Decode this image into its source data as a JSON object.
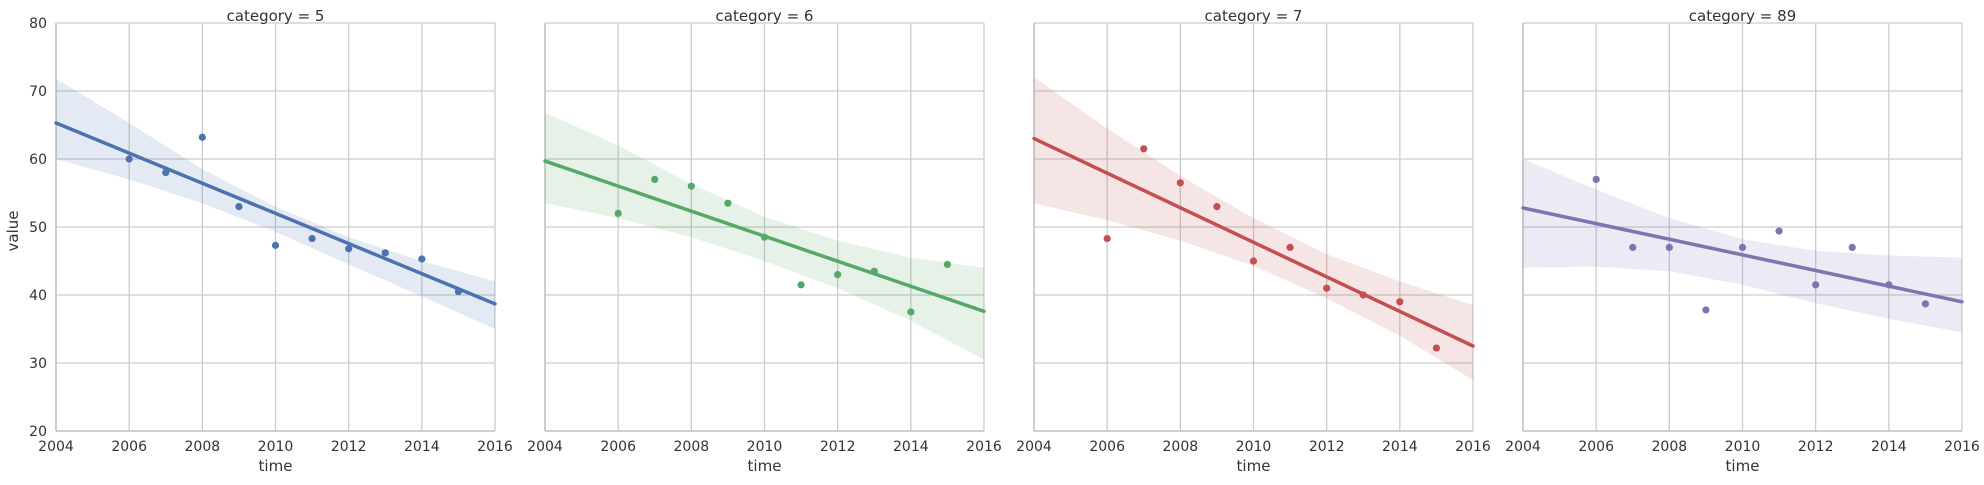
{
  "chart_data": {
    "type": "scatter",
    "kind": "faceted scatter with linear regression fit and confidence band",
    "grid": true,
    "xlim": [
      2004,
      2016
    ],
    "ylim": [
      20,
      80
    ],
    "xticks": [
      2004,
      2006,
      2008,
      2010,
      2012,
      2014,
      2016
    ],
    "yticks": [
      20,
      30,
      40,
      50,
      60,
      70,
      80
    ],
    "xlabel": "time",
    "ylabel": "value",
    "panels": [
      {
        "title": "category = 5",
        "color": "#4c72b0",
        "x": [
          2006,
          2007,
          2008,
          2009,
          2010,
          2011,
          2012,
          2013,
          2014,
          2015
        ],
        "y": [
          60,
          58,
          63.2,
          53,
          47.3,
          48.3,
          46.8,
          46.2,
          45.3,
          40.5
        ],
        "fit": {
          "start": [
            2004,
            65.3
          ],
          "end": [
            2016,
            38.7
          ]
        },
        "ci_upper": [
          [
            2004,
            71.8
          ],
          [
            2006,
            65.3
          ],
          [
            2008,
            58.5
          ],
          [
            2010,
            53
          ],
          [
            2012,
            48.5
          ],
          [
            2014,
            45
          ],
          [
            2016,
            42
          ]
        ],
        "ci_lower": [
          [
            2004,
            60
          ],
          [
            2006,
            57
          ],
          [
            2008,
            53.5
          ],
          [
            2010,
            49.3
          ],
          [
            2012,
            44.5
          ],
          [
            2014,
            39.8
          ],
          [
            2016,
            35
          ]
        ]
      },
      {
        "title": "category = 6",
        "color": "#55a868",
        "x": [
          2006,
          2007,
          2008,
          2009,
          2010,
          2011,
          2012,
          2013,
          2014,
          2015
        ],
        "y": [
          52,
          57,
          56,
          53.5,
          48.5,
          41.5,
          43,
          43.5,
          37.5,
          44.5
        ],
        "fit": {
          "start": [
            2004,
            59.7
          ],
          "end": [
            2016,
            37.6
          ]
        },
        "ci_upper": [
          [
            2004,
            66.8
          ],
          [
            2006,
            62
          ],
          [
            2008,
            56.3
          ],
          [
            2010,
            51.5
          ],
          [
            2012,
            48
          ],
          [
            2014,
            45.5
          ],
          [
            2016,
            44
          ]
        ],
        "ci_lower": [
          [
            2004,
            53.5
          ],
          [
            2006,
            51.3
          ],
          [
            2008,
            48.5
          ],
          [
            2010,
            45
          ],
          [
            2012,
            41
          ],
          [
            2014,
            36.2
          ],
          [
            2016,
            30.5
          ]
        ]
      },
      {
        "title": "category = 7",
        "color": "#c44e52",
        "x": [
          2006,
          2007,
          2008,
          2009,
          2010,
          2011,
          2012,
          2013,
          2014,
          2015
        ],
        "y": [
          48.3,
          61.5,
          56.5,
          53,
          45,
          47,
          41,
          40,
          39,
          32.2
        ],
        "fit": {
          "start": [
            2004,
            63
          ],
          "end": [
            2016,
            32.5
          ]
        },
        "ci_upper": [
          [
            2004,
            72
          ],
          [
            2006,
            64.5
          ],
          [
            2008,
            57.5
          ],
          [
            2010,
            51.3
          ],
          [
            2012,
            46
          ],
          [
            2014,
            42
          ],
          [
            2016,
            38.5
          ]
        ],
        "ci_lower": [
          [
            2004,
            53.5
          ],
          [
            2006,
            51
          ],
          [
            2008,
            48
          ],
          [
            2010,
            44.3
          ],
          [
            2012,
            39.5
          ],
          [
            2014,
            34
          ],
          [
            2016,
            27.5
          ]
        ]
      },
      {
        "title": "category = 89",
        "color": "#8172b2",
        "x": [
          2006,
          2007,
          2008,
          2009,
          2010,
          2011,
          2012,
          2013,
          2014,
          2015
        ],
        "y": [
          57,
          47,
          47,
          37.8,
          47,
          49.4,
          41.5,
          47,
          41.5,
          38.7
        ],
        "fit": {
          "start": [
            2004,
            52.8
          ],
          "end": [
            2016,
            39
          ]
        },
        "ci_upper": [
          [
            2004,
            60
          ],
          [
            2006,
            55.5
          ],
          [
            2008,
            51.3
          ],
          [
            2010,
            48.2
          ],
          [
            2012,
            46.5
          ],
          [
            2014,
            45.8
          ],
          [
            2016,
            45.5
          ]
        ],
        "ci_lower": [
          [
            2004,
            44
          ],
          [
            2006,
            44.2
          ],
          [
            2008,
            43.5
          ],
          [
            2010,
            41.5
          ],
          [
            2012,
            38.8
          ],
          [
            2014,
            36.5
          ],
          [
            2016,
            34.5
          ]
        ]
      }
    ]
  }
}
